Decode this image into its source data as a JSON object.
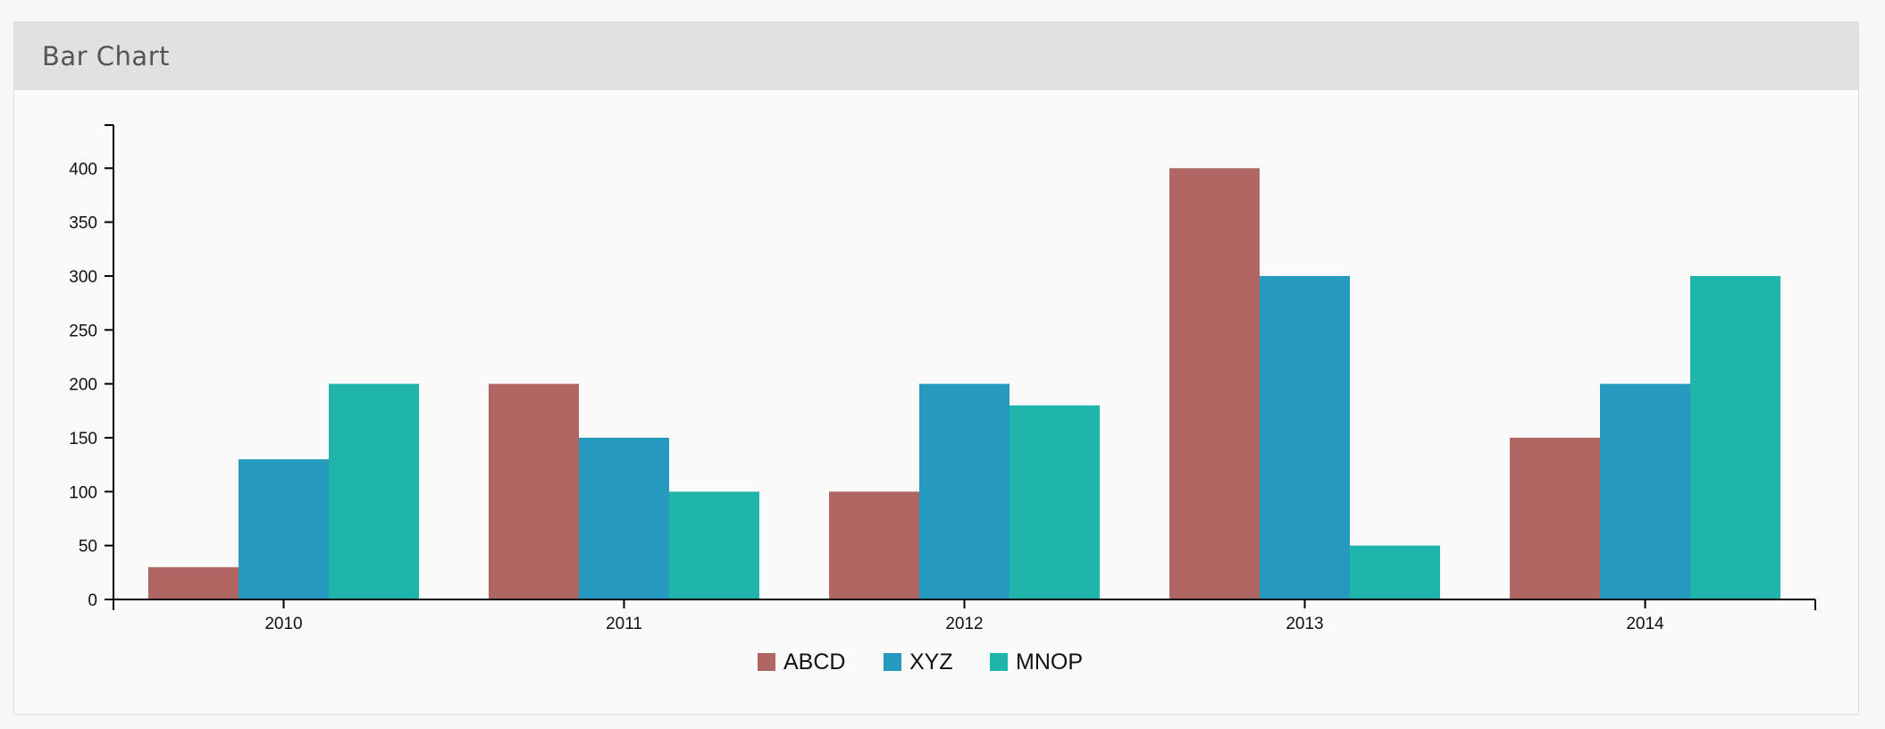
{
  "panel": {
    "title": "Bar Chart"
  },
  "chart_data": {
    "type": "bar",
    "categories": [
      "2010",
      "2011",
      "2012",
      "2013",
      "2014"
    ],
    "series": [
      {
        "name": "ABCD",
        "color": "#b06663",
        "values": [
          30,
          200,
          100,
          400,
          150
        ]
      },
      {
        "name": "XYZ",
        "color": "#2699bf",
        "values": [
          130,
          150,
          200,
          300,
          200
        ]
      },
      {
        "name": "MNOP",
        "color": "#20b5aa",
        "values": [
          200,
          100,
          180,
          50,
          300
        ]
      }
    ],
    "ylim": [
      0,
      440
    ],
    "yticks": [
      0,
      50,
      100,
      150,
      200,
      250,
      300,
      350,
      400
    ],
    "legend": "bottom-center",
    "grid": false
  }
}
